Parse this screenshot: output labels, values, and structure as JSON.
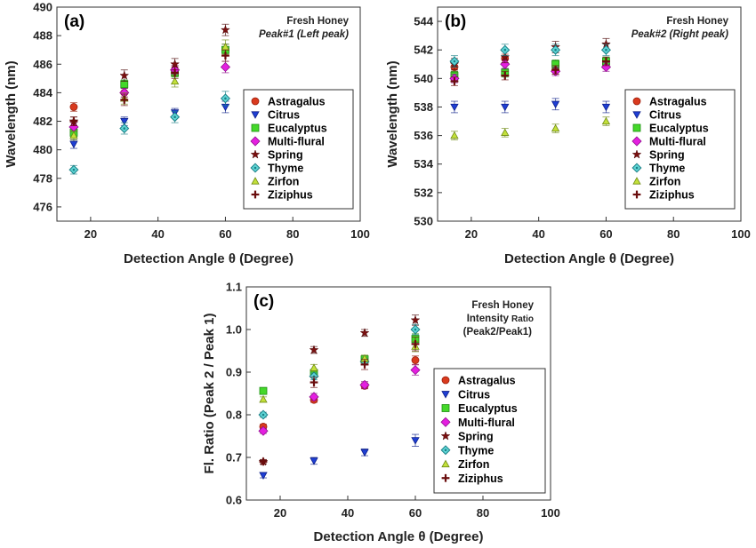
{
  "series_styles": [
    {
      "name": "Astragalus",
      "marker": "circle",
      "fill": "#d93a1e",
      "stroke": "#9b1f0c"
    },
    {
      "name": "Citrus",
      "marker": "triangle-down",
      "fill": "#1f3fd4",
      "stroke": "#0d1f8a"
    },
    {
      "name": "Eucalyptus",
      "marker": "square",
      "fill": "#44d82a",
      "stroke": "#1f8e12"
    },
    {
      "name": "Multi-flural",
      "marker": "diamond",
      "fill": "#e41fe0",
      "stroke": "#8f0d8c"
    },
    {
      "name": "Spring",
      "marker": "star",
      "fill": "#7a1010",
      "stroke": "#4a0505"
    },
    {
      "name": "Thyme",
      "marker": "diamond-dot",
      "fill": "#5fd6d6",
      "stroke": "#1b7f86"
    },
    {
      "name": "Zirfon",
      "marker": "triangle-up",
      "fill": "#c3e03a",
      "stroke": "#6e8a14"
    },
    {
      "name": "Ziziphus",
      "marker": "plus",
      "fill": "#6a0d0d",
      "stroke": "#6a0d0d"
    }
  ],
  "chart_data": [
    {
      "type": "scatter",
      "panel_label": "(a)",
      "annotation_title": "Fresh Honey",
      "annotation_subtitle": "Peak#1 (Left peak)",
      "xlabel": "Detection Angle θ (Degree)",
      "ylabel": "Wavelength (nm)",
      "xlim": [
        10,
        100
      ],
      "ylim": [
        475,
        490
      ],
      "xticks": [
        20,
        40,
        60,
        80,
        100
      ],
      "yticks": [
        476,
        478,
        480,
        482,
        484,
        486,
        488,
        490
      ],
      "legend_position": "lower-right",
      "grid": false,
      "x": [
        15,
        30,
        45,
        60
      ],
      "series": [
        {
          "name": "Astragalus",
          "values": [
            483.0,
            484.0,
            485.6,
            487.0
          ],
          "errors": [
            0.3,
            0.3,
            0.3,
            0.4
          ]
        },
        {
          "name": "Citrus",
          "values": [
            480.4,
            482.0,
            482.6,
            483.0
          ],
          "errors": [
            0.3,
            0.3,
            0.3,
            0.4
          ]
        },
        {
          "name": "Eucalyptus",
          "values": [
            481.2,
            484.6,
            485.4,
            487.0
          ],
          "errors": [
            0.3,
            0.3,
            0.3,
            0.4
          ]
        },
        {
          "name": "Multi-flural",
          "values": [
            481.6,
            484.0,
            485.6,
            485.8
          ],
          "errors": [
            0.3,
            0.3,
            0.3,
            0.4
          ]
        },
        {
          "name": "Spring",
          "values": [
            482.0,
            485.2,
            486.0,
            488.4
          ],
          "errors": [
            0.3,
            0.4,
            0.4,
            0.4
          ]
        },
        {
          "name": "Thyme",
          "values": [
            478.6,
            481.5,
            482.3,
            483.6
          ],
          "errors": [
            0.3,
            0.4,
            0.4,
            0.5
          ]
        },
        {
          "name": "Zirfon",
          "values": [
            481.0,
            483.6,
            484.8,
            487.2
          ],
          "errors": [
            0.3,
            0.4,
            0.4,
            0.5
          ]
        },
        {
          "name": "Ziziphus",
          "values": [
            482.0,
            483.5,
            485.4,
            486.6
          ],
          "errors": [
            0.3,
            0.4,
            0.4,
            0.4
          ]
        }
      ]
    },
    {
      "type": "scatter",
      "panel_label": "(b)",
      "annotation_title": "Fresh Honey",
      "annotation_subtitle": "Peak#2 (Right peak)",
      "xlabel": "Detection Angle θ (Degree)",
      "ylabel": "Wavelength (nm)",
      "xlim": [
        10,
        100
      ],
      "ylim": [
        530,
        545
      ],
      "xticks": [
        20,
        40,
        60,
        80,
        100
      ],
      "yticks": [
        530,
        532,
        534,
        536,
        538,
        540,
        542,
        544
      ],
      "legend_position": "lower-right",
      "grid": false,
      "x": [
        15,
        30,
        45,
        60
      ],
      "series": [
        {
          "name": "Astragalus",
          "values": [
            540.8,
            541.4,
            540.6,
            541.0
          ],
          "errors": [
            0.3,
            0.3,
            0.3,
            0.3
          ]
        },
        {
          "name": "Citrus",
          "values": [
            538.0,
            538.0,
            538.2,
            538.0
          ],
          "errors": [
            0.4,
            0.4,
            0.4,
            0.4
          ]
        },
        {
          "name": "Eucalyptus",
          "values": [
            540.2,
            540.4,
            541.0,
            541.2
          ],
          "errors": [
            0.3,
            0.3,
            0.3,
            0.3
          ]
        },
        {
          "name": "Multi-flural",
          "values": [
            540.0,
            541.0,
            540.5,
            540.8
          ],
          "errors": [
            0.3,
            0.3,
            0.3,
            0.3
          ]
        },
        {
          "name": "Spring",
          "values": [
            541.0,
            541.5,
            542.2,
            542.4
          ],
          "errors": [
            0.4,
            0.4,
            0.4,
            0.4
          ]
        },
        {
          "name": "Thyme",
          "values": [
            541.2,
            542.0,
            542.0,
            542.0
          ],
          "errors": [
            0.4,
            0.4,
            0.4,
            0.4
          ]
        },
        {
          "name": "Zirfon",
          "values": [
            536.0,
            536.2,
            536.5,
            537.0
          ],
          "errors": [
            0.3,
            0.3,
            0.3,
            0.3
          ]
        },
        {
          "name": "Ziziphus",
          "values": [
            539.8,
            540.2,
            540.6,
            541.2
          ],
          "errors": [
            0.3,
            0.3,
            0.3,
            0.3
          ]
        }
      ]
    },
    {
      "type": "scatter",
      "panel_label": "(c)",
      "annotation_title": "Fresh Honey",
      "annotation_subtitle_main": "Intensity",
      "annotation_subtitle_small": "Ratio",
      "annotation_subtitle_2": "(Peak2/Peak1)",
      "xlabel": "Detection Angle θ (Degree)",
      "ylabel": "Fl. Ratio (Peak 2 / Peak 1)",
      "xlim": [
        10,
        100
      ],
      "ylim": [
        0.6,
        1.1
      ],
      "xticks": [
        20,
        40,
        60,
        80,
        100
      ],
      "yticks": [
        0.6,
        0.7,
        0.8,
        0.9,
        1.0,
        1.1
      ],
      "legend_position": "lower-right",
      "grid": false,
      "x": [
        15,
        30,
        45,
        60
      ],
      "series": [
        {
          "name": "Astragalus",
          "values": [
            0.772,
            0.835,
            0.868,
            0.928
          ],
          "errors": [
            0.006,
            0.006,
            0.007,
            0.01
          ]
        },
        {
          "name": "Citrus",
          "values": [
            0.658,
            0.692,
            0.712,
            0.74
          ],
          "errors": [
            0.006,
            0.008,
            0.008,
            0.014
          ]
        },
        {
          "name": "Eucalyptus",
          "values": [
            0.856,
            0.898,
            0.93,
            0.978
          ],
          "errors": [
            0.006,
            0.008,
            0.008,
            0.012
          ]
        },
        {
          "name": "Multi-flural",
          "values": [
            0.762,
            0.842,
            0.87,
            0.905
          ],
          "errors": [
            0.006,
            0.008,
            0.008,
            0.012
          ]
        },
        {
          "name": "Spring",
          "values": [
            0.69,
            0.952,
            0.992,
            1.022
          ],
          "errors": [
            0.005,
            0.008,
            0.008,
            0.012
          ]
        },
        {
          "name": "Thyme",
          "values": [
            0.8,
            0.89,
            0.925,
            1.0
          ],
          "errors": [
            0.006,
            0.008,
            0.008,
            0.012
          ]
        },
        {
          "name": "Zirfon",
          "values": [
            0.836,
            0.91,
            0.932,
            0.96
          ],
          "errors": [
            0.006,
            0.008,
            0.008,
            0.012
          ]
        },
        {
          "name": "Ziziphus",
          "values": [
            0.69,
            0.876,
            0.918,
            0.966
          ],
          "errors": [
            0.005,
            0.012,
            0.012,
            0.016
          ]
        }
      ]
    }
  ]
}
